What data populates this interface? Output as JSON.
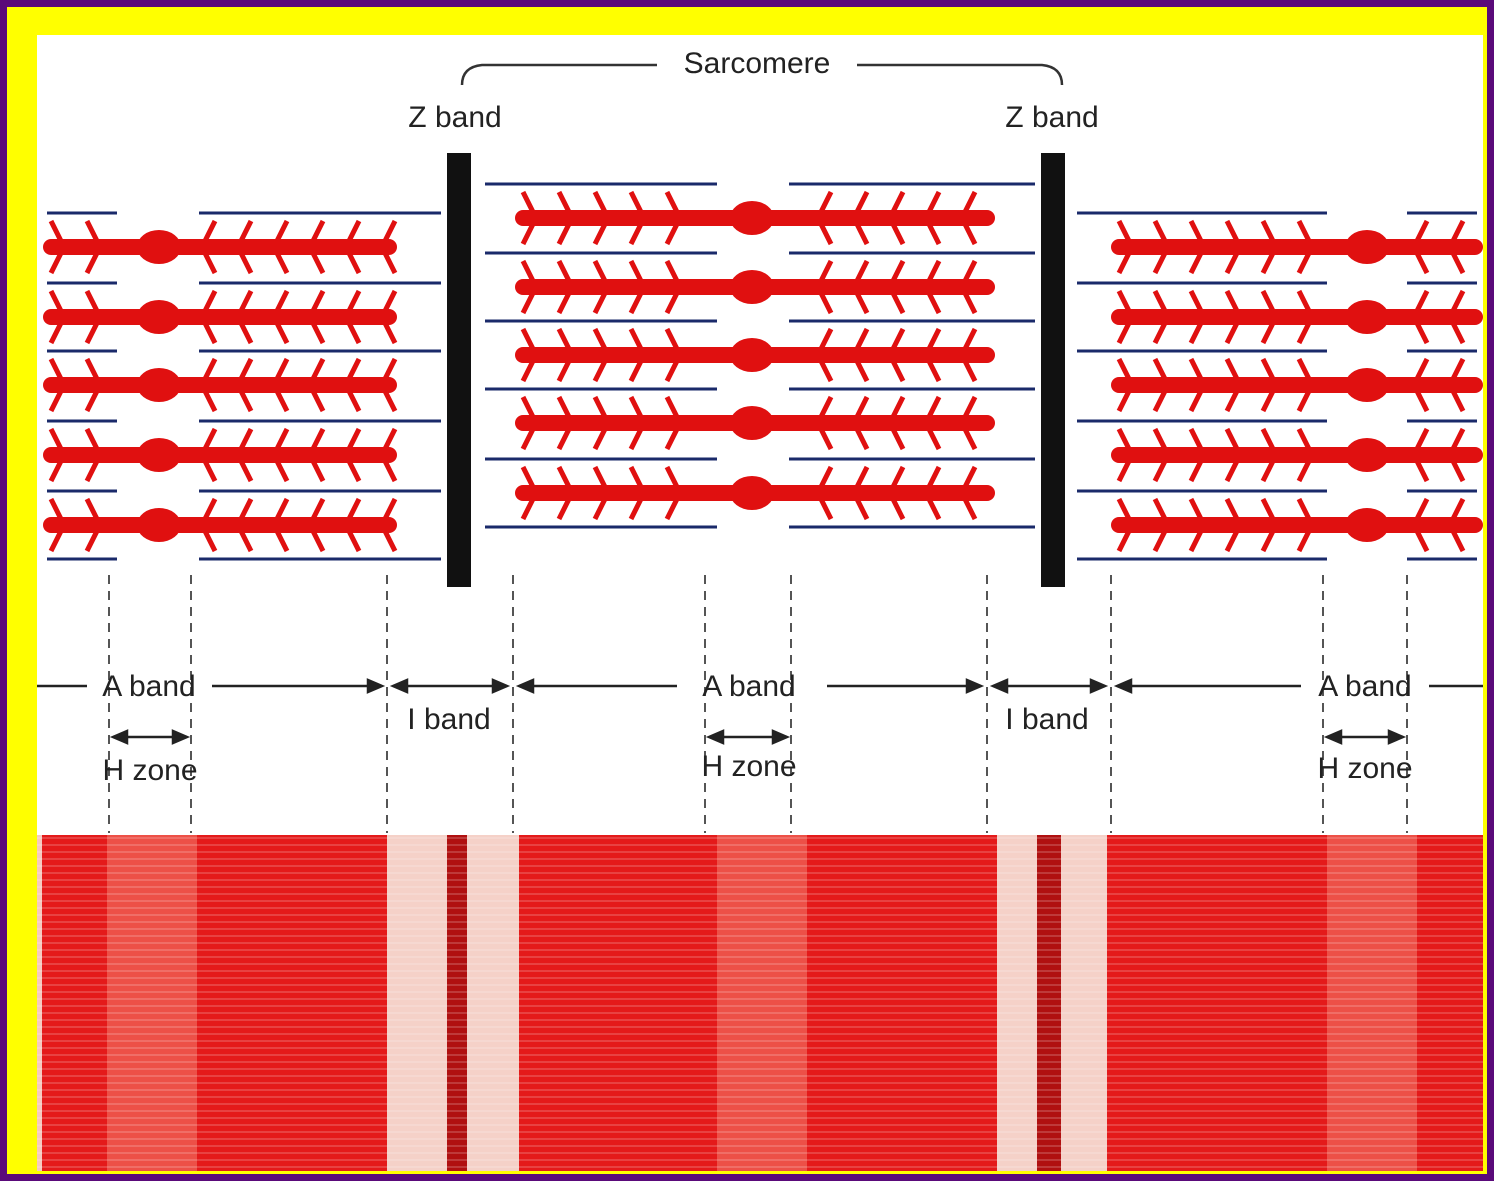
{
  "labels": {
    "sarcomere": "Sarcomere",
    "z_band_left": "Z band",
    "z_band_right": "Z band",
    "a_band_left": "A band",
    "a_band_center": "A band",
    "a_band_right": "A band",
    "i_band_left": "I band",
    "i_band_right": "I band",
    "h_zone_left": "H zone",
    "h_zone_center": "H zone",
    "h_zone_right": "H zone"
  },
  "colors": {
    "background": "#5a0a7a",
    "frame": "#ffff00",
    "panel": "#ffffff",
    "thick_filament": "#e01010",
    "thin_filament": "#1a2a6a",
    "z_band": "#111111"
  }
}
